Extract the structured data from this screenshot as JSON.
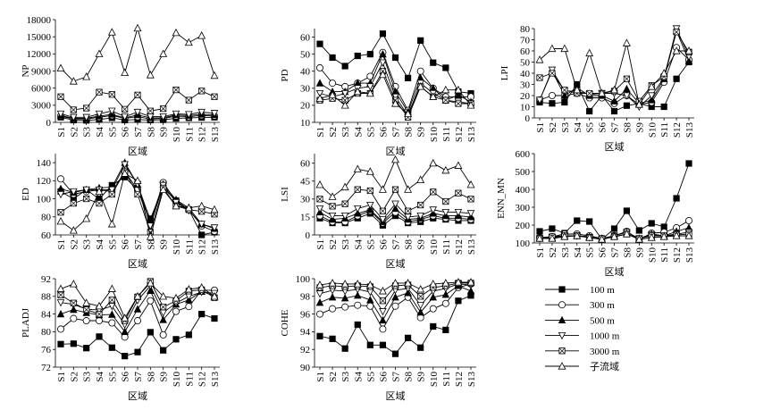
{
  "chart_data": [
    {
      "type": "line",
      "ylabel": "NP",
      "xlabel": "区域",
      "categories": [
        "S1",
        "S2",
        "S3",
        "S4",
        "S5",
        "S6",
        "S7",
        "S8",
        "S9",
        "S10",
        "S11",
        "S12",
        "S13"
      ],
      "ylim": [
        0,
        18000
      ],
      "yticks": [
        0,
        3000,
        6000,
        9000,
        12000,
        15000,
        18000
      ],
      "series": [
        {
          "name": "100 m",
          "values": [
            900,
            400,
            350,
            500,
            800,
            400,
            500,
            400,
            450,
            700,
            800,
            850,
            900
          ]
        },
        {
          "name": "300 m",
          "values": [
            1100,
            600,
            600,
            900,
            1200,
            700,
            1000,
            600,
            700,
            1100,
            1000,
            1200,
            1100
          ]
        },
        {
          "name": "500 m",
          "values": [
            1200,
            700,
            700,
            1100,
            1400,
            800,
            1300,
            800,
            800,
            1300,
            1200,
            1400,
            1300
          ]
        },
        {
          "name": "1000 m",
          "values": [
            1500,
            900,
            900,
            1500,
            2000,
            1000,
            1800,
            1000,
            1000,
            1500,
            1400,
            1800,
            1600
          ]
        },
        {
          "name": "3000 m",
          "values": [
            4500,
            2200,
            2500,
            5300,
            4900,
            2300,
            4800,
            2000,
            2400,
            5700,
            3900,
            5500,
            4500
          ]
        },
        {
          "name": "子流域",
          "values": [
            9500,
            7200,
            8000,
            12000,
            15800,
            8700,
            16500,
            8300,
            12000,
            15700,
            14000,
            15200,
            8200
          ]
        }
      ]
    },
    {
      "type": "line",
      "ylabel": "PD",
      "xlabel": "区域",
      "categories": [
        "S1",
        "S2",
        "S3",
        "S4",
        "S5",
        "S6",
        "S7",
        "S8",
        "S9",
        "S10",
        "S11",
        "S12",
        "S13"
      ],
      "ylim": [
        10,
        65
      ],
      "yticks": [
        10,
        20,
        30,
        40,
        50,
        60
      ],
      "series": [
        {
          "name": "100 m",
          "values": [
            56,
            48,
            43,
            49,
            50,
            62,
            48,
            36,
            58,
            45,
            42,
            28,
            27
          ]
        },
        {
          "name": "300 m",
          "values": [
            42,
            33,
            31,
            33,
            37,
            51,
            31,
            17,
            40,
            30,
            25,
            25,
            25
          ]
        },
        {
          "name": "500 m",
          "values": [
            33,
            28,
            28,
            33,
            33,
            50,
            28,
            16,
            36,
            30,
            23,
            26,
            22
          ]
        },
        {
          "name": "1000 m",
          "values": [
            27,
            25,
            27,
            30,
            31,
            45,
            25,
            14,
            33,
            27,
            23,
            22,
            21
          ]
        },
        {
          "name": "3000 m",
          "values": [
            23,
            24,
            23,
            27,
            27,
            40,
            23,
            13,
            31,
            25,
            23,
            21,
            21
          ]
        },
        {
          "name": "子流域",
          "values": [
            24,
            26,
            20,
            28,
            27,
            38,
            21,
            15,
            31,
            25,
            29,
            29,
            20
          ]
        }
      ]
    },
    {
      "type": "line",
      "ylabel": "LPI",
      "xlabel": "区域",
      "categories": [
        "S1",
        "S2",
        "S3",
        "S4",
        "S5",
        "S6",
        "S7",
        "S8",
        "S9",
        "S10",
        "S11",
        "S12",
        "S13"
      ],
      "ylim": [
        0,
        80
      ],
      "yticks": [
        0,
        10,
        20,
        30,
        40,
        50,
        60,
        70,
        80
      ],
      "series": [
        {
          "name": "100 m",
          "values": [
            14,
            13,
            14,
            30,
            6,
            20,
            6,
            11,
            13,
            10,
            10,
            35,
            50
          ]
        },
        {
          "name": "300 m",
          "values": [
            16,
            20,
            20,
            22,
            18,
            18,
            13,
            20,
            12,
            14,
            32,
            63,
            52
          ]
        },
        {
          "name": "500 m",
          "values": [
            16,
            42,
            20,
            27,
            20,
            20,
            15,
            26,
            13,
            16,
            35,
            78,
            51
          ]
        },
        {
          "name": "1000 m",
          "values": [
            16,
            43,
            24,
            24,
            21,
            22,
            22,
            20,
            10,
            20,
            36,
            80,
            55
          ]
        },
        {
          "name": "3000 m",
          "values": [
            36,
            40,
            25,
            22,
            22,
            22,
            24,
            35,
            15,
            29,
            37,
            77,
            59
          ]
        },
        {
          "name": "子流域",
          "values": [
            52,
            62,
            62,
            25,
            58,
            22,
            25,
            67,
            12,
            28,
            40,
            60,
            60
          ]
        }
      ]
    },
    {
      "type": "line",
      "ylabel": "ED",
      "xlabel": "区域",
      "categories": [
        "S1",
        "S2",
        "S3",
        "S4",
        "S5",
        "S6",
        "S7",
        "S8",
        "S9",
        "S10",
        "S11",
        "S12",
        "S13"
      ],
      "ylim": [
        60,
        150
      ],
      "yticks": [
        60,
        80,
        100,
        120,
        140
      ],
      "series": [
        {
          "name": "100 m",
          "values": [
            108,
            100,
            110,
            100,
            115,
            124,
            110,
            78,
            112,
            98,
            88,
            60,
            63
          ]
        },
        {
          "name": "300 m",
          "values": [
            122,
            105,
            108,
            110,
            108,
            130,
            110,
            73,
            118,
            97,
            88,
            70,
            64
          ]
        },
        {
          "name": "500 m",
          "values": [
            111,
            107,
            110,
            112,
            113,
            140,
            116,
            76,
            116,
            99,
            90,
            72,
            67
          ]
        },
        {
          "name": "1000 m",
          "values": [
            105,
            108,
            110,
            110,
            110,
            138,
            116,
            70,
            115,
            96,
            87,
            72,
            68
          ]
        },
        {
          "name": "3000 m",
          "values": [
            85,
            95,
            100,
            95,
            105,
            130,
            105,
            63,
            112,
            92,
            88,
            86,
            83
          ]
        },
        {
          "name": "子流域",
          "values": [
            75,
            65,
            78,
            108,
            72,
            128,
            120,
            58,
            110,
            92,
            90,
            92,
            88
          ]
        }
      ]
    },
    {
      "type": "line",
      "ylabel": "LSI",
      "xlabel": "区域",
      "categories": [
        "S1",
        "S2",
        "S3",
        "S4",
        "S5",
        "S6",
        "S7",
        "S8",
        "S9",
        "S10",
        "S11",
        "S12",
        "S13"
      ],
      "ylim": [
        0,
        68
      ],
      "yticks": [
        0,
        15,
        30,
        45,
        60
      ],
      "series": [
        {
          "name": "100 m",
          "values": [
            14,
            10,
            10,
            14,
            18,
            8,
            16,
            10,
            11,
            14,
            13,
            12,
            12
          ]
        },
        {
          "name": "300 m",
          "values": [
            16,
            11,
            11,
            16,
            20,
            10,
            19,
            11,
            13,
            16,
            14,
            14,
            13
          ]
        },
        {
          "name": "500 m",
          "values": [
            19,
            13,
            14,
            18,
            21,
            11,
            22,
            13,
            14,
            18,
            16,
            16,
            15
          ]
        },
        {
          "name": "1000 m",
          "values": [
            22,
            16,
            16,
            22,
            25,
            13,
            26,
            15,
            16,
            21,
            19,
            19,
            18
          ]
        },
        {
          "name": "3000 m",
          "values": [
            30,
            24,
            26,
            38,
            37,
            20,
            38,
            20,
            25,
            36,
            28,
            35,
            30
          ]
        },
        {
          "name": "子流域",
          "values": [
            42,
            32,
            40,
            55,
            53,
            38,
            63,
            38,
            46,
            60,
            54,
            58,
            42
          ]
        }
      ]
    },
    {
      "type": "line",
      "ylabel": "ENN_MN",
      "xlabel": "区域",
      "categories": [
        "S1",
        "S2",
        "S3",
        "S4",
        "S5",
        "S6",
        "S7",
        "S8",
        "S9",
        "S10",
        "S11",
        "S12",
        "S13"
      ],
      "ylim": [
        100,
        600
      ],
      "yticks": [
        100,
        200,
        300,
        400,
        500,
        600
      ],
      "series": [
        {
          "name": "100 m",
          "values": [
            165,
            180,
            155,
            225,
            220,
            120,
            180,
            280,
            170,
            210,
            190,
            350,
            545
          ]
        },
        {
          "name": "300 m",
          "values": [
            130,
            135,
            150,
            150,
            140,
            125,
            140,
            165,
            120,
            155,
            160,
            185,
            225
          ]
        },
        {
          "name": "500 m",
          "values": [
            130,
            130,
            140,
            140,
            135,
            125,
            140,
            160,
            125,
            150,
            140,
            165,
            185
          ]
        },
        {
          "name": "1000 m",
          "values": [
            125,
            130,
            140,
            140,
            132,
            122,
            140,
            160,
            125,
            145,
            140,
            150,
            160
          ]
        },
        {
          "name": "3000 m",
          "values": [
            125,
            135,
            140,
            140,
            130,
            125,
            135,
            150,
            125,
            140,
            140,
            145,
            150
          ]
        },
        {
          "name": "子流域",
          "values": [
            125,
            125,
            135,
            140,
            130,
            120,
            135,
            150,
            120,
            130,
            135,
            140,
            140
          ]
        }
      ]
    },
    {
      "type": "line",
      "ylabel": "PLADJ",
      "xlabel": "区域",
      "categories": [
        "S1",
        "S2",
        "S3",
        "S4",
        "S5",
        "S6",
        "S7",
        "S8",
        "S9",
        "S10",
        "S11",
        "S12",
        "S13"
      ],
      "ylim": [
        72,
        92
      ],
      "yticks": [
        72,
        76,
        80,
        84,
        88,
        92
      ],
      "series": [
        {
          "name": "100 m",
          "values": [
            77.2,
            77.3,
            76.3,
            78.9,
            76.4,
            74.5,
            75.4,
            79.9,
            75.8,
            78.3,
            79.3,
            84.0,
            83.0
          ]
        },
        {
          "name": "300 m",
          "values": [
            80.6,
            83.0,
            82.5,
            82.5,
            82.0,
            78.8,
            82.5,
            87.0,
            79.3,
            84.6,
            85.7,
            89.4,
            89.4
          ]
        },
        {
          "name": "500 m",
          "values": [
            84.0,
            85.0,
            84.3,
            83.8,
            83.9,
            80.0,
            85.1,
            89.3,
            82.7,
            86.2,
            87.2,
            89.1,
            88.2
          ]
        },
        {
          "name": "1000 m",
          "values": [
            86.6,
            86.2,
            85.1,
            84.9,
            85.8,
            81.6,
            87.1,
            90.4,
            84.3,
            86.5,
            88.0,
            89.0,
            88.7
          ]
        },
        {
          "name": "3000 m",
          "values": [
            88.3,
            86.5,
            85.0,
            84.0,
            87.2,
            82.5,
            87.9,
            91.4,
            85.6,
            87.0,
            89.2,
            89.5,
            87.7
          ]
        },
        {
          "name": "子流域",
          "values": [
            89.7,
            90.8,
            86.5,
            85.8,
            89.7,
            83.1,
            88.0,
            91.0,
            88.0,
            87.6,
            89.6,
            90.0,
            88.0
          ]
        }
      ]
    },
    {
      "type": "line",
      "ylabel": "COHE",
      "xlabel": "区域",
      "categories": [
        "S1",
        "S2",
        "S3",
        "S4",
        "S5",
        "S6",
        "S7",
        "S8",
        "S9",
        "S10",
        "S11",
        "S12",
        "S13"
      ],
      "ylim": [
        90,
        100
      ],
      "yticks": [
        90,
        92,
        94,
        96,
        98,
        100
      ],
      "series": [
        {
          "name": "100 m",
          "values": [
            93.5,
            93.2,
            92.1,
            94.8,
            92.5,
            92.5,
            91.5,
            93.3,
            92.2,
            94.6,
            94.2,
            97.5,
            98.1
          ]
        },
        {
          "name": "300 m",
          "values": [
            96.0,
            96.6,
            96.8,
            97.0,
            96.9,
            94.3,
            96.9,
            97.9,
            95.6,
            96.6,
            97.2,
            99.0,
            99.4
          ]
        },
        {
          "name": "500 m",
          "values": [
            97.3,
            97.9,
            97.8,
            98.1,
            97.6,
            95.3,
            97.9,
            98.4,
            96.2,
            97.9,
            98.2,
            99.2,
            98.6
          ]
        },
        {
          "name": "1000 m",
          "values": [
            98.3,
            98.7,
            98.6,
            98.8,
            98.5,
            96.3,
            98.7,
            98.9,
            97.0,
            98.6,
            98.9,
            99.4,
            99.3
          ]
        },
        {
          "name": "3000 m",
          "values": [
            99.0,
            99.2,
            99.1,
            99.2,
            99.1,
            97.5,
            99.2,
            99.3,
            98.0,
            99.0,
            99.2,
            99.5,
            99.5
          ]
        },
        {
          "name": "子流域",
          "values": [
            99.3,
            99.5,
            99.4,
            99.4,
            99.3,
            98.6,
            99.5,
            99.5,
            98.8,
            99.4,
            99.5,
            99.6,
            99.6
          ]
        }
      ]
    }
  ],
  "legend": {
    "items": [
      {
        "label": "100 m",
        "marker": "filled-square"
      },
      {
        "label": "300 m",
        "marker": "open-circle"
      },
      {
        "label": "500 m",
        "marker": "filled-triangle"
      },
      {
        "label": "1000 m",
        "marker": "open-inverted-triangle"
      },
      {
        "label": "3000 m",
        "marker": "crossed-square"
      },
      {
        "label": "子流域",
        "marker": "open-triangle"
      }
    ]
  }
}
